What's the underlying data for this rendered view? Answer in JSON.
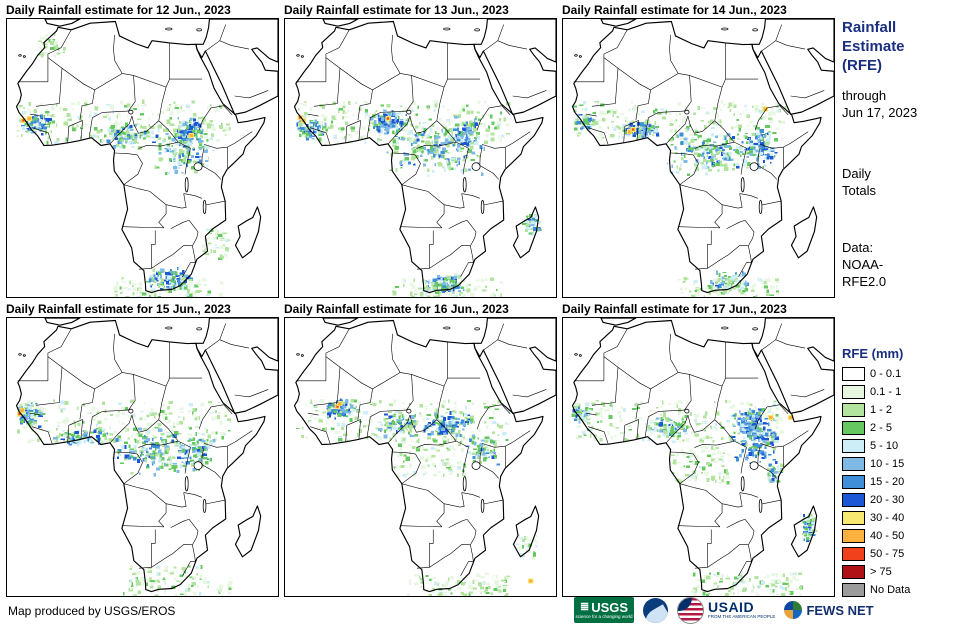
{
  "panels": [
    {
      "title": "Daily Rainfall estimate for 12 Jun., 2023",
      "rain": {
        "bands": [
          [
            -17,
            7,
            -7,
            13,
            90,
            "heavy"
          ],
          [
            -17,
            5,
            42,
            16,
            240,
            "light"
          ],
          [
            5,
            3,
            20,
            11,
            100,
            "moderate"
          ],
          [
            20,
            -4,
            38,
            12,
            160,
            "moderate"
          ],
          [
            27,
            4,
            35,
            12,
            80,
            "heavy"
          ],
          [
            -11,
            28,
            -4,
            34,
            30,
            "light"
          ],
          [
            18,
            -35,
            32,
            -28,
            110,
            "heavy"
          ],
          [
            10,
            -37,
            40,
            -31,
            100,
            "light"
          ],
          [
            34,
            -26,
            42,
            -18,
            50,
            "light"
          ]
        ],
        "spots": [
          [
            -15.5,
            11,
            "red"
          ],
          [
            -13.8,
            11.5,
            "orange"
          ],
          [
            31,
            7,
            "orange"
          ]
        ]
      }
    },
    {
      "title": "Daily Rainfall estimate for 13 Jun., 2023",
      "rain": {
        "bands": [
          [
            -17,
            6,
            -8,
            12,
            80,
            "heavy"
          ],
          [
            -17,
            5,
            42,
            16,
            240,
            "light"
          ],
          [
            3,
            7,
            14,
            14,
            110,
            "heavy"
          ],
          [
            8,
            -4,
            36,
            10,
            200,
            "moderate"
          ],
          [
            26,
            4,
            34,
            12,
            70,
            "heavy"
          ],
          [
            18,
            -36,
            30,
            -30,
            120,
            "heavy"
          ],
          [
            10,
            -37,
            40,
            -31,
            90,
            "light"
          ],
          [
            46,
            -20,
            51,
            -14,
            40,
            "moderate"
          ]
        ],
        "spots": [
          [
            8.5,
            11.5,
            "red"
          ],
          [
            -15,
            11,
            "orange"
          ],
          [
            -15.8,
            11.8,
            "red"
          ]
        ]
      }
    },
    {
      "title": "Daily Rainfall estimate for 14 Jun., 2023",
      "rain": {
        "bands": [
          [
            -17,
            6,
            42,
            16,
            230,
            "light"
          ],
          [
            -4,
            6,
            7,
            11,
            90,
            "heavy"
          ],
          [
            8,
            -4,
            34,
            9,
            190,
            "moderate"
          ],
          [
            29,
            -3,
            40,
            10,
            110,
            "heavy"
          ],
          [
            20,
            -35,
            32,
            -29,
            80,
            "moderate"
          ],
          [
            12,
            -37,
            40,
            -31,
            90,
            "light"
          ],
          [
            -17,
            8,
            -10,
            13,
            60,
            "moderate"
          ]
        ],
        "spots": [
          [
            -1.5,
            8,
            "orange"
          ],
          [
            -0.6,
            8.6,
            "red"
          ],
          [
            36,
            14,
            "orange"
          ]
        ]
      }
    },
    {
      "title": "Daily Rainfall estimate for 15 Jun., 2023",
      "rain": {
        "bands": [
          [
            -17.5,
            9,
            -10,
            15.5,
            100,
            "heavy"
          ],
          [
            -17,
            5,
            42,
            16,
            220,
            "light"
          ],
          [
            -8,
            4,
            8,
            9,
            90,
            "moderate"
          ],
          [
            8,
            -4,
            32,
            9,
            170,
            "moderate"
          ],
          [
            28,
            -4,
            38,
            8,
            90,
            "moderate"
          ],
          [
            14,
            -34,
            34,
            -28,
            60,
            "light"
          ],
          [
            12,
            -37,
            42,
            -31,
            70,
            "light"
          ]
        ],
        "spots": [
          [
            -16.5,
            12.5,
            "red"
          ],
          [
            -15.8,
            13.4,
            "orange"
          ]
        ]
      }
    },
    {
      "title": "Daily Rainfall estimate for 16 Jun., 2023",
      "rain": {
        "bands": [
          [
            -10,
            11,
            1,
            16.5,
            90,
            "heavy"
          ],
          [
            -17,
            5,
            42,
            16,
            200,
            "light"
          ],
          [
            5,
            6,
            18,
            13,
            80,
            "moderate"
          ],
          [
            18,
            6,
            32,
            13,
            110,
            "heavy"
          ],
          [
            10,
            -4,
            30,
            6,
            110,
            "light"
          ],
          [
            30,
            -2,
            40,
            8,
            70,
            "moderate"
          ],
          [
            14,
            -36,
            42,
            -30,
            110,
            "light"
          ],
          [
            44,
            -26,
            50,
            -20,
            30,
            "light"
          ]
        ],
        "spots": [
          [
            -5.5,
            14.5,
            "red"
          ],
          [
            -4.8,
            15.2,
            "orange"
          ],
          [
            48,
            -32,
            "orange"
          ]
        ]
      }
    },
    {
      "title": "Daily Rainfall estimate for 17 Jun., 2023",
      "rain": {
        "bands": [
          [
            -17.5,
            10,
            -12,
            15.5,
            70,
            "moderate"
          ],
          [
            -17,
            5,
            42,
            16,
            210,
            "light"
          ],
          [
            2,
            6,
            16,
            12,
            90,
            "moderate"
          ],
          [
            26,
            -2,
            40,
            14,
            200,
            "heavy"
          ],
          [
            28,
            8,
            36,
            14,
            70,
            "heavy"
          ],
          [
            36,
            -6,
            41,
            0,
            50,
            "moderate"
          ],
          [
            46,
            -22,
            50.5,
            -14,
            60,
            "moderate"
          ],
          [
            16,
            -36,
            46,
            -30,
            110,
            "light"
          ],
          [
            10,
            -6,
            26,
            4,
            90,
            "light"
          ]
        ],
        "spots": [
          [
            37.5,
            11.5,
            "orange"
          ],
          [
            43,
            11.5,
            "orange"
          ]
        ]
      }
    }
  ],
  "sidebar": {
    "title_lines": [
      "Rainfall",
      "Estimate",
      "(RFE)"
    ],
    "through": [
      "through",
      "Jun 17, 2023"
    ],
    "totals": [
      "Daily",
      "Totals"
    ],
    "data_source": [
      "Data:",
      "NOAA-",
      "RFE2.0"
    ],
    "legend": {
      "title": "RFE (mm)",
      "entries": [
        {
          "label": "0 - 0.1",
          "color": "#ffffff"
        },
        {
          "label": "0.1 - 1",
          "color": "#e8f7e2"
        },
        {
          "label": "1 - 2",
          "color": "#b2e39f"
        },
        {
          "label": "2 - 5",
          "color": "#66c861"
        },
        {
          "label": "5 - 10",
          "color": "#cdeef7"
        },
        {
          "label": "10 - 15",
          "color": "#7fb9e6"
        },
        {
          "label": "15 - 20",
          "color": "#3f8ed8"
        },
        {
          "label": "20 - 30",
          "color": "#1a56d6"
        },
        {
          "label": "30 - 40",
          "color": "#f7e871"
        },
        {
          "label": "40 - 50",
          "color": "#fbb03f"
        },
        {
          "label": "50 - 75",
          "color": "#f0401c"
        },
        {
          "label": "> 75",
          "color": "#b01116"
        },
        {
          "label": "No Data",
          "color": "#9b9b9b"
        }
      ]
    }
  },
  "footer": {
    "credit": "Map produced by USGS/EROS",
    "logos": {
      "usgs": {
        "text": "USGS",
        "tagline": "science for a changing world",
        "color": "#006f41"
      },
      "noaa": {
        "name": "NOAA",
        "color": "#0a3d7c"
      },
      "usaid": {
        "text": "USAID",
        "tagline": "FROM THE AMERICAN PEOPLE",
        "color": "#002f6c"
      },
      "fewsnet": {
        "text": "FEWS NET",
        "color": "#15306e"
      }
    }
  }
}
